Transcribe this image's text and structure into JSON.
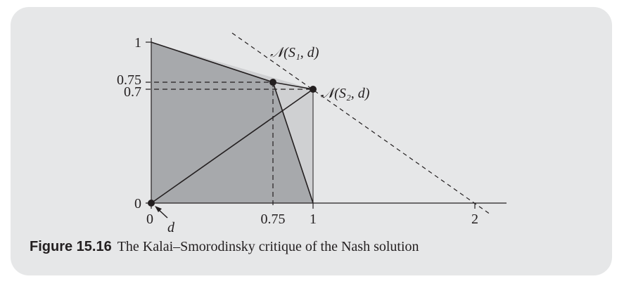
{
  "figure": {
    "number": "Figure 15.16",
    "caption": "The Kalai–Smorodinsky critique of the Nash solution"
  },
  "axes": {
    "x_ticks": [
      "0",
      "0.75",
      "1",
      "2"
    ],
    "y_ticks": [
      "0",
      "0.7",
      "0.75",
      "1"
    ]
  },
  "labels": {
    "disagreement_point": "d",
    "nash_s1": "𝒩(S₁, d)",
    "nash_s2": "𝒩(S₂, d)"
  },
  "colors": {
    "panel": "#e6e7e8",
    "region_dark": "#a7a9ac",
    "region_light": "#cfd0d2",
    "ink": "#231f20"
  },
  "chart_data": {
    "type": "diagram",
    "x_range": [
      0,
      2.1
    ],
    "y_range": [
      0,
      1
    ],
    "regions": [
      {
        "name": "S1",
        "vertices": [
          [
            0,
            0
          ],
          [
            0,
            1
          ],
          [
            0.75,
            0.75
          ],
          [
            1,
            0
          ]
        ]
      },
      {
        "name": "S2",
        "vertices": [
          [
            0,
            0
          ],
          [
            0,
            1
          ],
          [
            1,
            0.7
          ],
          [
            1,
            0
          ]
        ]
      }
    ],
    "points": [
      {
        "name": "d",
        "x": 0,
        "y": 0
      },
      {
        "name": "N(S1,d)",
        "x": 0.75,
        "y": 0.75
      },
      {
        "name": "N(S2,d)",
        "x": 1,
        "y": 0.7
      }
    ],
    "dashed_lines": [
      {
        "from": [
          -0.5,
          1.03
        ],
        "to": [
          2.1,
          -0.07
        ]
      }
    ],
    "guide_lines": [
      {
        "from": [
          0,
          0.75
        ],
        "to": [
          0.75,
          0.75
        ]
      },
      {
        "from": [
          0.75,
          0.75
        ],
        "to": [
          0.75,
          0
        ]
      },
      {
        "from": [
          0,
          0.7
        ],
        "to": [
          1,
          0.7
        ]
      }
    ]
  }
}
